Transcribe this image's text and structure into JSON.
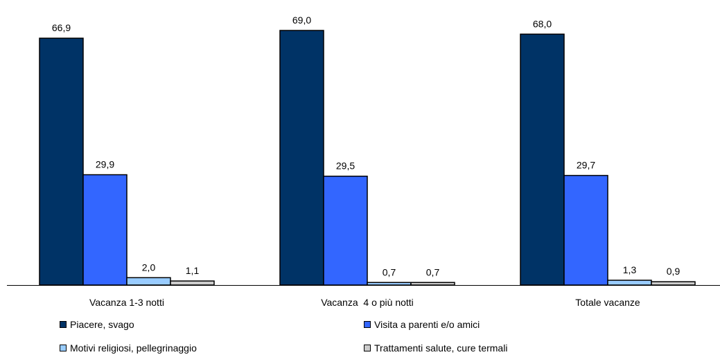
{
  "chart_data": {
    "type": "bar",
    "categories": [
      "Vacanza 1-3 notti",
      "Vacanza  4 o più notti",
      "Totale vacanze"
    ],
    "series": [
      {
        "name": "Piacere, svago",
        "values": [
          66.9,
          69.0,
          68.0
        ],
        "labels": [
          "66,9",
          "69,0",
          "68,0"
        ],
        "color": "#003366"
      },
      {
        "name": "Visita a parenti e/o amici",
        "values": [
          29.9,
          29.5,
          29.7
        ],
        "labels": [
          "29,9",
          "29,5",
          "29,7"
        ],
        "color": "#3366FF"
      },
      {
        "name": "Motivi religiosi, pellegrinaggio",
        "values": [
          2.0,
          0.7,
          1.3
        ],
        "labels": [
          "2,0",
          "0,7",
          "1,3"
        ],
        "color": "#99CCFF"
      },
      {
        "name": "Trattamenti salute, cure termali",
        "values": [
          1.1,
          0.7,
          0.9
        ],
        "labels": [
          "1,1",
          "0,7",
          "0,9"
        ],
        "color": "#CCCCCC"
      }
    ],
    "ylim": [
      0,
      69
    ],
    "grid": false,
    "legend_position": "bottom",
    "title": "",
    "xlabel": "",
    "ylabel": ""
  }
}
